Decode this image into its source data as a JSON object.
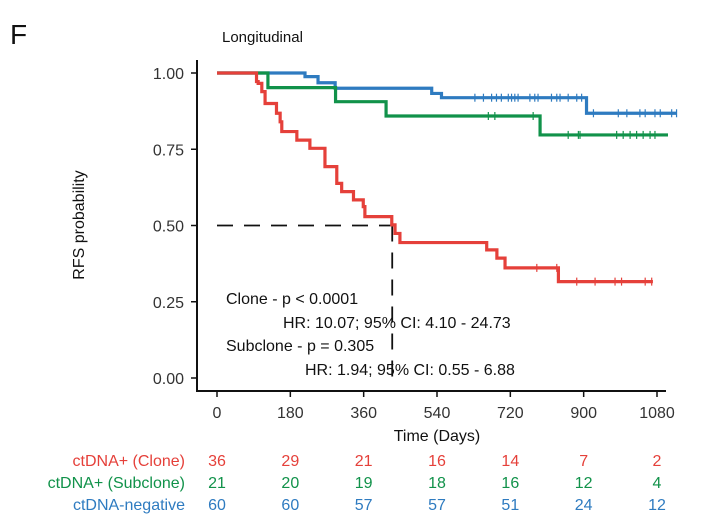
{
  "panel_label": "F",
  "chart_data": {
    "type": "line",
    "subtype": "kaplan-meier step",
    "title": "Longitudinal",
    "xlabel": "Time (Days)",
    "ylabel": "RFS probability",
    "xlim": [
      -50,
      1115
    ],
    "ylim": [
      0,
      1
    ],
    "x_ticks": [
      0,
      180,
      360,
      540,
      720,
      900,
      1080
    ],
    "y_ticks": [
      0,
      0.25,
      0.5,
      0.75,
      1
    ],
    "y_tick_labels": [
      "0.00",
      "0.25",
      "0.50",
      "0.75",
      "1.00"
    ],
    "grid": false,
    "median_line": {
      "prob": 0.5,
      "day": 435
    },
    "series": [
      {
        "name": "ctDNA+ (Clone)",
        "color": "#e5403a",
        "steps": [
          [
            0,
            1
          ],
          [
            97,
            0.972
          ],
          [
            101,
            0.966
          ],
          [
            110,
            0.939
          ],
          [
            118,
            0.9
          ],
          [
            146,
            0.868
          ],
          [
            155,
            0.84
          ],
          [
            159,
            0.808
          ],
          [
            196,
            0.78
          ],
          [
            228,
            0.753
          ],
          [
            265,
            0.693
          ],
          [
            294,
            0.638
          ],
          [
            306,
            0.611
          ],
          [
            335,
            0.584
          ],
          [
            359,
            0.562
          ],
          [
            363,
            0.529
          ],
          [
            429,
            0.502
          ],
          [
            437,
            0.474
          ],
          [
            449,
            0.444
          ],
          [
            662,
            0.42
          ],
          [
            687,
            0.393
          ],
          [
            707,
            0.361
          ],
          [
            838,
            0.316
          ]
        ],
        "end": 1070,
        "censored": [
          785,
          834,
          883,
          928,
          977,
          993,
          1051,
          1067
        ],
        "at_risk": [
          36,
          29,
          21,
          16,
          14,
          7,
          2
        ]
      },
      {
        "name": "ctDNA+ (Subclone)",
        "color": "#11924a",
        "steps": [
          [
            0,
            1
          ],
          [
            125,
            0.952
          ],
          [
            291,
            0.906
          ],
          [
            415,
            0.859
          ],
          [
            793,
            0.797
          ]
        ],
        "end": 1107,
        "censored": [
          666,
          682,
          776,
          862,
          887,
          891,
          981,
          997,
          1014,
          1030,
          1046,
          1063,
          1075
        ],
        "at_risk": [
          21,
          20,
          19,
          18,
          16,
          12,
          4
        ]
      },
      {
        "name": "ctDNA-negative",
        "color": "#2e7bc0",
        "steps": [
          [
            0,
            1
          ],
          [
            216,
            0.988
          ],
          [
            248,
            0.968
          ],
          [
            290,
            0.95
          ],
          [
            527,
            0.933
          ],
          [
            551,
            0.919
          ],
          [
            907,
            0.868
          ]
        ],
        "end": 1128,
        "censored": [
          633,
          654,
          674,
          686,
          698,
          715,
          723,
          731,
          739,
          768,
          780,
          788,
          821,
          834,
          842,
          862,
          883,
          895,
          924,
          985,
          1006,
          1038,
          1051,
          1075,
          1088,
          1116,
          1128
        ],
        "at_risk": [
          60,
          60,
          57,
          57,
          51,
          24,
          12
        ]
      }
    ],
    "annotations": [
      "Clone - p < 0.0001",
      "HR: 10.07; 95% CI: 4.10 - 24.73",
      "Subclone - p = 0.305",
      "HR: 1.94; 95% CI: 0.55 - 6.88"
    ]
  }
}
